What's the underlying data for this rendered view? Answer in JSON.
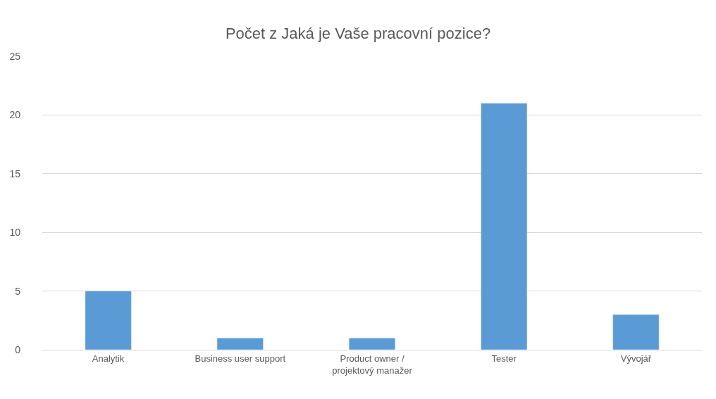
{
  "chart_data": {
    "type": "bar",
    "title": "Počet z Jaká je Vaše pracovní pozice?",
    "categories": [
      "Analytik",
      "Business user support",
      "Product owner /\nprojektový manažer",
      "Tester",
      "Vývojář"
    ],
    "values": [
      5,
      1,
      1,
      21,
      3
    ],
    "color": "#5b9bd5",
    "ylim": [
      0,
      25
    ],
    "yticks": [
      0,
      5,
      10,
      15,
      20,
      25
    ],
    "grid": "y"
  }
}
